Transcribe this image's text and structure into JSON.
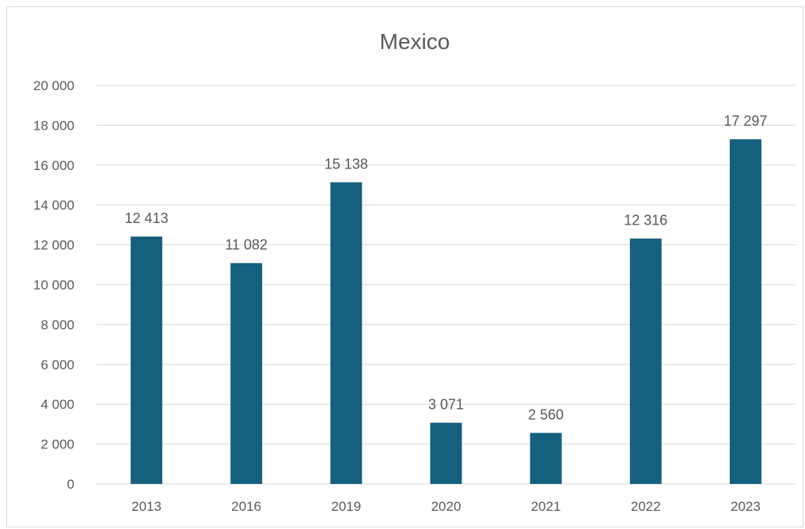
{
  "chart_data": {
    "type": "bar",
    "title": "Mexico",
    "xlabel": "",
    "ylabel": "",
    "categories": [
      "2013",
      "2016",
      "2019",
      "2020",
      "2021",
      "2022",
      "2023"
    ],
    "values": [
      12413,
      11082,
      15138,
      3071,
      2560,
      12316,
      17297
    ],
    "value_labels": [
      "12 413",
      "11 082",
      "15 138",
      "3 071",
      "2 560",
      "12 316",
      "17 297"
    ],
    "ylim": [
      0,
      20000
    ],
    "yticks": [
      0,
      2000,
      4000,
      6000,
      8000,
      10000,
      12000,
      14000,
      16000,
      18000,
      20000
    ],
    "ytick_labels": [
      "0",
      "2 000",
      "4 000",
      "6 000",
      "8 000",
      "10 000",
      "12 000",
      "14 000",
      "16 000",
      "18 000",
      "20 000"
    ],
    "grid": true,
    "legend": "none",
    "bar_color": "#155f7f"
  }
}
